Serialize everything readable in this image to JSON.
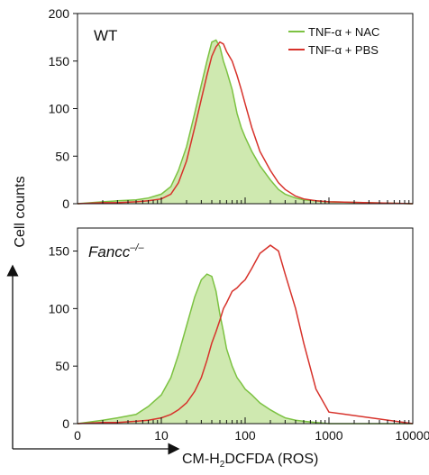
{
  "chart_data": [
    {
      "type": "area",
      "panel_label": "WT",
      "panel_label_italic": false,
      "ylim": [
        0,
        200
      ],
      "yticks": [
        "0",
        "50",
        "100",
        "150",
        "200"
      ],
      "x_scale": "log",
      "xlim": [
        1,
        10000
      ],
      "series": [
        {
          "name": "TNF-α + NAC",
          "color": "#7cc242",
          "fill": "#cfe9b0",
          "style": "filled",
          "x": [
            1,
            2,
            3,
            5,
            7,
            10,
            13,
            16,
            20,
            25,
            30,
            35,
            40,
            45,
            50,
            55,
            60,
            70,
            80,
            90,
            100,
            120,
            150,
            200,
            250,
            300,
            400,
            500,
            700,
            1000,
            10000
          ],
          "y": [
            0,
            2,
            3,
            4,
            6,
            10,
            18,
            35,
            60,
            95,
            125,
            150,
            170,
            172,
            165,
            150,
            140,
            120,
            95,
            80,
            70,
            55,
            40,
            25,
            15,
            10,
            6,
            4,
            3,
            2,
            0
          ]
        },
        {
          "name": "TNF-α + PBS",
          "color": "#d7322b",
          "style": "line",
          "x": [
            1,
            2,
            3,
            5,
            7,
            10,
            13,
            16,
            20,
            25,
            30,
            35,
            40,
            45,
            50,
            55,
            60,
            70,
            80,
            90,
            100,
            120,
            150,
            200,
            250,
            300,
            400,
            500,
            700,
            1000,
            10000
          ],
          "y": [
            0,
            1,
            1,
            2,
            3,
            5,
            10,
            22,
            45,
            80,
            110,
            135,
            155,
            165,
            170,
            168,
            160,
            150,
            135,
            120,
            105,
            80,
            55,
            35,
            22,
            15,
            8,
            5,
            3,
            2,
            0
          ]
        }
      ]
    },
    {
      "type": "area",
      "panel_label": "Fancc",
      "panel_label_sup": "–/–",
      "panel_label_italic": true,
      "ylim": [
        0,
        170
      ],
      "yticks": [
        "0",
        "50",
        "100",
        "150"
      ],
      "x_scale": "log",
      "xlim": [
        1,
        10000
      ],
      "xtick_labels": [
        "0",
        "10",
        "100",
        "1000",
        "10000"
      ],
      "series": [
        {
          "name": "TNF-α + NAC",
          "color": "#7cc242",
          "fill": "#cfe9b0",
          "style": "filled",
          "x": [
            1,
            2,
            3,
            5,
            7,
            10,
            13,
            16,
            20,
            25,
            30,
            35,
            40,
            45,
            50,
            55,
            60,
            70,
            80,
            90,
            100,
            120,
            150,
            200,
            250,
            300,
            400,
            500,
            700,
            1000,
            10000
          ],
          "y": [
            0,
            3,
            5,
            8,
            15,
            25,
            40,
            60,
            85,
            110,
            125,
            130,
            128,
            115,
            95,
            80,
            65,
            50,
            40,
            35,
            30,
            25,
            18,
            12,
            8,
            5,
            3,
            2,
            1,
            0,
            0
          ]
        },
        {
          "name": "TNF-α + PBS",
          "color": "#d7322b",
          "style": "line",
          "x": [
            1,
            2,
            3,
            5,
            7,
            10,
            13,
            16,
            20,
            25,
            30,
            35,
            40,
            45,
            50,
            55,
            60,
            70,
            80,
            90,
            100,
            120,
            150,
            200,
            250,
            300,
            400,
            500,
            700,
            1000,
            10000
          ],
          "y": [
            0,
            1,
            1,
            2,
            3,
            5,
            8,
            12,
            18,
            28,
            40,
            55,
            70,
            80,
            90,
            100,
            105,
            115,
            118,
            122,
            125,
            135,
            148,
            155,
            150,
            130,
            100,
            70,
            30,
            10,
            0
          ]
        }
      ]
    }
  ],
  "xtick_labels": [
    "0",
    "10",
    "100",
    "1000",
    "10000"
  ],
  "xlabel_main": "CM-H",
  "xlabel_sub": "2",
  "xlabel_tail": "DCFDA (ROS)",
  "ylabel": "Cell counts"
}
